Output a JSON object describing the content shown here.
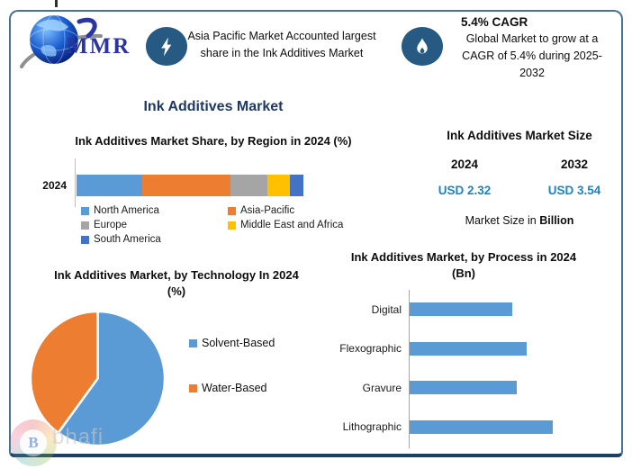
{
  "header": {
    "logo": {
      "text": "MMR",
      "color": "#2b35a0"
    },
    "highlight": {
      "icon": "lightning-icon",
      "circle_color": "#265a82",
      "text": "Asia Pacific Market Accounted largest share in the Ink Additives Market"
    },
    "cagr": {
      "icon": "flame-icon",
      "circle_color": "#265a82",
      "title": "5.4% CAGR",
      "text": "Global Market to grow at a CAGR of 5.4% during 2025-2032"
    }
  },
  "main_title": "Ink Additives Market",
  "market_size": {
    "title": "Ink Additives Market Size",
    "columns": [
      {
        "year": "2024",
        "value": "USD 2.32"
      },
      {
        "year": "2032",
        "value": "USD 3.54"
      }
    ],
    "caption_prefix": "Market Size in ",
    "caption_bold": "Billion",
    "value_color": "#1b84c5"
  },
  "watermark": {
    "letter": "B",
    "text": "bhafi"
  },
  "chart_data": [
    {
      "id": "region_share",
      "type": "bar",
      "variant": "stacked-horizontal",
      "title": "Ink Additives Market Share, by Region in 2024 (%)",
      "categories": [
        "2024"
      ],
      "series": [
        {
          "name": "North America",
          "values": [
            29
          ],
          "color": "#5b9bd5"
        },
        {
          "name": "Asia-Pacific",
          "values": [
            39
          ],
          "color": "#ed7d31"
        },
        {
          "name": "Europe",
          "values": [
            16
          ],
          "color": "#a5a5a5"
        },
        {
          "name": "Middle East and Africa",
          "values": [
            10
          ],
          "color": "#ffc000"
        },
        {
          "name": "South America",
          "values": [
            6
          ],
          "color": "#4472c4"
        }
      ],
      "xlim": [
        0,
        100
      ],
      "legend_position": "bottom",
      "grid": false
    },
    {
      "id": "technology_split",
      "type": "pie",
      "title": "Ink Additives Market, by Technology In 2024 (%)",
      "labels": [
        "Solvent-Based",
        "Water-Based"
      ],
      "values": [
        60,
        40
      ],
      "colors": [
        "#5b9bd5",
        "#ed7d31"
      ],
      "start_angle_deg": 0,
      "direction": "clockwise",
      "legend_position": "right"
    },
    {
      "id": "process_size",
      "type": "bar",
      "variant": "horizontal",
      "title": "Ink Additives Market, by Process in 2024 (Bn)",
      "categories": [
        "Digital",
        "Flexographic",
        "Gravure",
        "Lithographic"
      ],
      "values": [
        0.51,
        0.58,
        0.53,
        0.71
      ],
      "color": "#5b9bd5",
      "xlim": [
        0,
        0.78
      ],
      "grid": false
    }
  ]
}
